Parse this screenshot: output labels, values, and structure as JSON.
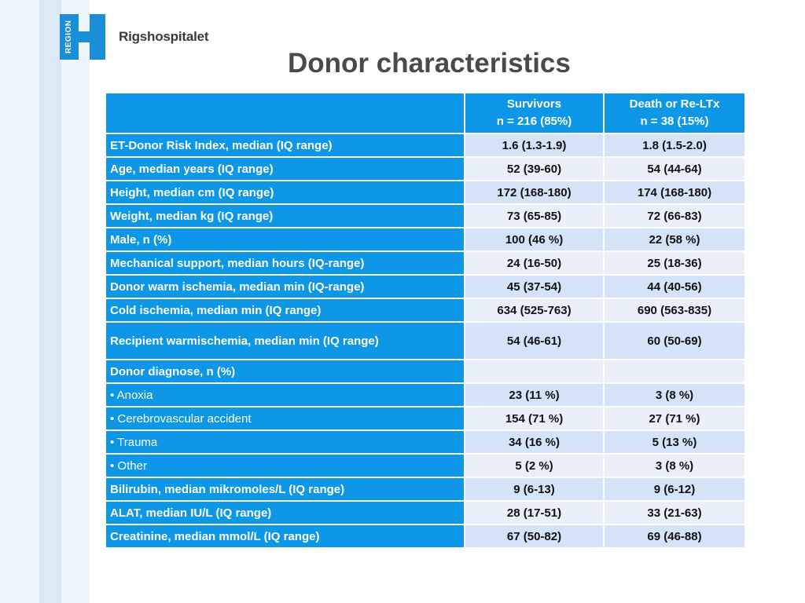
{
  "brand": {
    "logo_text": "REGION",
    "name": "Rigshospitalet",
    "logo_color": "#1a8fd8"
  },
  "title": "Donor characteristics",
  "table": {
    "header": [
      {
        "line1": "",
        "line2": ""
      },
      {
        "line1": "Survivors",
        "line2": "n = 216 (85%)"
      },
      {
        "line1": "Death or Re-LTx",
        "line2": "n = 38 (15%)"
      }
    ],
    "rows": [
      {
        "label": "ET-Donor Risk Index, median (IQ range)",
        "survivors": "1.6 (1.3-1.9)",
        "death": "1.8 (1.5-2.0)"
      },
      {
        "label": "Age, median years (IQ range)",
        "survivors": "52 (39-60)",
        "death": "54 (44-64)"
      },
      {
        "label": "Height, median cm (IQ range)",
        "survivors": "172 (168-180)",
        "death": "174 (168-180)"
      },
      {
        "label": "Weight, median kg (IQ range)",
        "survivors": "73 (65-85)",
        "death": "72 (66-83)"
      },
      {
        "label": "Male, n (%)",
        "survivors": "100 (46 %)",
        "death": "22 (58 %)"
      },
      {
        "label": "Mechanical support, median hours (IQ-range)",
        "survivors": "24 (16-50)",
        "death": "25 (18-36)"
      },
      {
        "label": "Donor warm ischemia, median min (IQ-range)",
        "survivors": "45 (37-54)",
        "death": "44 (40-56)"
      },
      {
        "label": "Cold ischemia, median min (IQ range)",
        "survivors": "634 (525-763)",
        "death": "690 (563-835)"
      },
      {
        "label": "Recipient warmischemia, median min (IQ range)",
        "survivors": "54 (46-61)",
        "death": "60 (50-69)"
      },
      {
        "label": "Donor diagnose, n (%)",
        "survivors": "",
        "death": ""
      },
      {
        "label": "•  Anoxia",
        "survivors": "23 (11 %)",
        "death": "3 (8 %)"
      },
      {
        "label": "•  Cerebrovascular accident",
        "survivors": "154 (71 %)",
        "death": "27 (71 %)"
      },
      {
        "label": "•  Trauma",
        "survivors": "34 (16 %)",
        "death": "5 (13 %)"
      },
      {
        "label": "•  Other",
        "survivors": "5 (2 %)",
        "death": "3 (8 %)"
      },
      {
        "label": "Bilirubin, median mikromoles/L (IQ range)",
        "survivors": "9 (6-13)",
        "death": "9 (6-12)"
      },
      {
        "label": "ALAT, median IU/L (IQ range)",
        "survivors": "28 (17-51)",
        "death": "33 (21-63)"
      },
      {
        "label": "Creatinine, median mmol/L (IQ range)",
        "survivors": "67 (50-82)",
        "death": "69 (46-88)"
      }
    ]
  }
}
